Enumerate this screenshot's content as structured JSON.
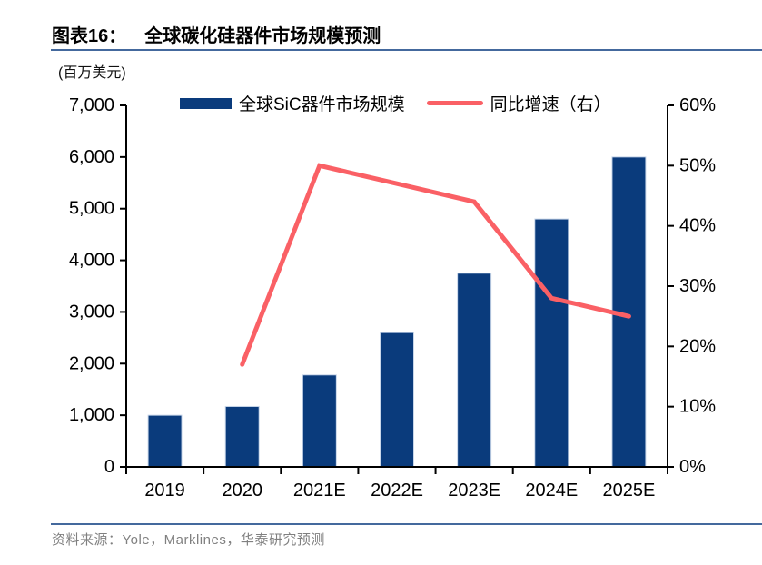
{
  "page": {
    "figure_label": "图表16：",
    "title": "全球碳化硅器件市场规模预测",
    "unit_label": "(百万美元)",
    "source_note": "资料来源：Yole，Marklines，华泰研究预测"
  },
  "legend": {
    "items": [
      {
        "label": "全球SiC器件市场规模",
        "type": "bar",
        "color": "#0a3b7c"
      },
      {
        "label": "同比增速（右）",
        "type": "line",
        "color": "#fa6065"
      }
    ]
  },
  "chart_data": {
    "type": "bar",
    "combo": "bar+line",
    "title": "全球碳化硅器件市场规模预测",
    "categories": [
      "2019",
      "2020",
      "2021E",
      "2022E",
      "2023E",
      "2024E",
      "2025E"
    ],
    "series": [
      {
        "name": "全球SiC器件市场规模",
        "type": "bar",
        "axis": "left",
        "color": "#0a3b7c",
        "border_color": "#c9d7ea",
        "values": [
          1000,
          1170,
          1780,
          2600,
          3750,
          4800,
          6000
        ]
      },
      {
        "name": "同比增速（右）",
        "type": "line",
        "axis": "right",
        "color": "#fa6065",
        "unit": "%",
        "values": [
          null,
          17,
          50,
          47,
          44,
          28,
          25
        ]
      }
    ],
    "left_axis": {
      "min": 0,
      "max": 7000,
      "step": 1000,
      "tick_labels": [
        "0",
        "1,000",
        "2,000",
        "3,000",
        "4,000",
        "5,000",
        "6,000",
        "7,000"
      ]
    },
    "right_axis": {
      "min": 0,
      "max": 60,
      "step": 10,
      "tick_labels": [
        "0%",
        "10%",
        "20%",
        "30%",
        "40%",
        "50%",
        "60%"
      ]
    },
    "ylabel_left": "百万美元",
    "grid": false,
    "legend_position": "top-center"
  }
}
